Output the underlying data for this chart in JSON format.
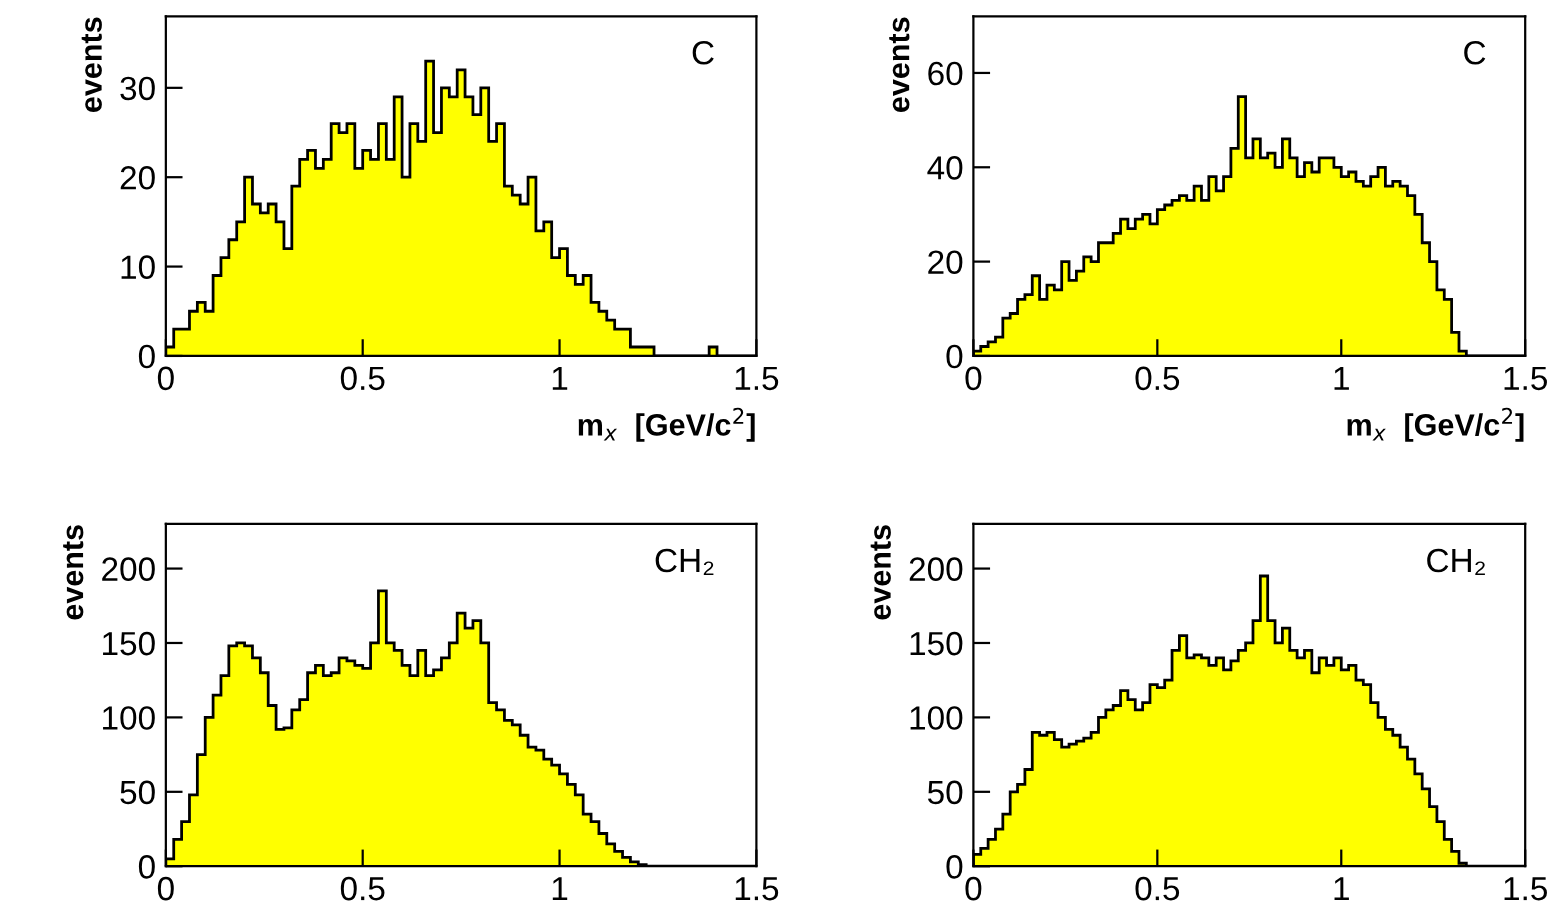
{
  "chart_data": [
    {
      "type": "histogram",
      "ylabel": "events",
      "xlabel": "m$_{x}$  [GeV/c$^{2}$]",
      "annotations": [
        "C"
      ],
      "color": "#ffff00",
      "bins": [
        0,
        0.02,
        0.04,
        0.06,
        0.08,
        0.1,
        0.12,
        0.14,
        0.16,
        0.18,
        0.2,
        0.22,
        0.24,
        0.26,
        0.28,
        0.3,
        0.32,
        0.34,
        0.36,
        0.38,
        0.4,
        0.42,
        0.44,
        0.46,
        0.48,
        0.5,
        0.52,
        0.54,
        0.56,
        0.58,
        0.6,
        0.62,
        0.64,
        0.66,
        0.68,
        0.7,
        0.72,
        0.74,
        0.76,
        0.78,
        0.8,
        0.82,
        0.84,
        0.86,
        0.88,
        0.9,
        0.92,
        0.94,
        0.96,
        0.98,
        1,
        1.02,
        1.04,
        1.06,
        1.08,
        1.1,
        1.12,
        1.14,
        1.16,
        1.18,
        1.2,
        1.22,
        1.24,
        1.26,
        1.28,
        1.3,
        1.32,
        1.34,
        1.36,
        1.38,
        1.4,
        1.42,
        1.44,
        1.46,
        1.48,
        1.5
      ],
      "values": [
        1,
        3,
        3,
        5,
        6,
        5,
        9,
        11,
        13,
        15,
        20,
        17,
        16,
        17,
        15,
        12,
        19,
        22,
        23,
        21,
        22,
        26,
        25,
        26,
        21,
        23,
        22,
        26,
        22,
        29,
        20,
        26,
        24,
        33,
        25,
        30,
        29,
        32,
        29,
        27,
        30,
        24,
        26,
        19,
        18,
        17,
        20,
        14,
        15,
        11,
        12,
        9,
        8,
        9,
        6,
        5,
        4,
        3,
        3,
        1,
        1,
        1,
        0,
        0,
        0,
        0,
        0,
        0,
        0,
        1,
        0,
        0,
        0,
        0,
        0
      ],
      "xlim": [
        0,
        1.5
      ],
      "xticks": [
        0,
        0.5,
        1,
        1.5
      ],
      "ylim": [
        0,
        38
      ],
      "yticks": [
        0,
        10,
        20,
        30
      ]
    },
    {
      "type": "histogram",
      "ylabel": "events",
      "xlabel": "m$_{x}$  [GeV/c$^{2}$]",
      "annotations": [
        "C"
      ],
      "color": "#ffff00",
      "bins": [
        0,
        0.02,
        0.04,
        0.06,
        0.08,
        0.1,
        0.12,
        0.14,
        0.16,
        0.18,
        0.2,
        0.22,
        0.24,
        0.26,
        0.28,
        0.3,
        0.32,
        0.34,
        0.36,
        0.38,
        0.4,
        0.42,
        0.44,
        0.46,
        0.48,
        0.5,
        0.52,
        0.54,
        0.56,
        0.58,
        0.6,
        0.62,
        0.64,
        0.66,
        0.68,
        0.7,
        0.72,
        0.74,
        0.76,
        0.78,
        0.8,
        0.82,
        0.84,
        0.86,
        0.88,
        0.9,
        0.92,
        0.94,
        0.96,
        0.98,
        1,
        1.02,
        1.04,
        1.06,
        1.08,
        1.1,
        1.12,
        1.14,
        1.16,
        1.18,
        1.2,
        1.22,
        1.24,
        1.26,
        1.28,
        1.3,
        1.32,
        1.34,
        1.36,
        1.38,
        1.4,
        1.42,
        1.44,
        1.46,
        1.48,
        1.5
      ],
      "values": [
        1,
        2,
        3,
        4,
        8,
        9,
        12,
        13,
        17,
        12,
        15,
        14,
        20,
        16,
        18,
        21,
        20,
        24,
        24,
        26,
        29,
        27,
        29,
        30,
        28,
        31,
        32,
        33,
        34,
        33,
        36,
        33,
        38,
        35,
        38,
        44,
        55,
        42,
        46,
        42,
        43,
        40,
        46,
        42,
        38,
        41,
        39,
        42,
        42,
        40,
        38,
        39,
        37,
        36,
        38,
        40,
        36,
        37,
        36,
        34,
        30,
        24,
        20,
        14,
        12,
        5,
        1,
        0,
        0,
        0,
        0,
        0,
        0,
        0,
        0
      ],
      "xlim": [
        0,
        1.5
      ],
      "xticks": [
        0,
        0.5,
        1,
        1.5
      ],
      "ylim": [
        0,
        72
      ],
      "yticks": [
        0,
        20,
        40,
        60
      ]
    },
    {
      "type": "histogram",
      "ylabel": "events",
      "annotations": [
        "CH₂"
      ],
      "color": "#ffff00",
      "bins": [
        0,
        0.02,
        0.04,
        0.06,
        0.08,
        0.1,
        0.12,
        0.14,
        0.16,
        0.18,
        0.2,
        0.22,
        0.24,
        0.26,
        0.28,
        0.3,
        0.32,
        0.34,
        0.36,
        0.38,
        0.4,
        0.42,
        0.44,
        0.46,
        0.48,
        0.5,
        0.52,
        0.54,
        0.56,
        0.58,
        0.6,
        0.62,
        0.64,
        0.66,
        0.68,
        0.7,
        0.72,
        0.74,
        0.76,
        0.78,
        0.8,
        0.82,
        0.84,
        0.86,
        0.88,
        0.9,
        0.92,
        0.94,
        0.96,
        0.98,
        1,
        1.02,
        1.04,
        1.06,
        1.08,
        1.1,
        1.12,
        1.14,
        1.16,
        1.18,
        1.2,
        1.22,
        1.24,
        1.26,
        1.28,
        1.3,
        1.32,
        1.34,
        1.36,
        1.38,
        1.4,
        1.42,
        1.44,
        1.46,
        1.48,
        1.5
      ],
      "values": [
        5,
        18,
        30,
        48,
        75,
        100,
        115,
        128,
        148,
        150,
        148,
        140,
        130,
        108,
        92,
        93,
        105,
        112,
        130,
        135,
        128,
        130,
        140,
        138,
        135,
        133,
        150,
        185,
        150,
        145,
        135,
        128,
        145,
        128,
        132,
        140,
        150,
        170,
        160,
        165,
        150,
        110,
        105,
        98,
        95,
        88,
        80,
        78,
        72,
        68,
        62,
        55,
        48,
        35,
        30,
        22,
        15,
        10,
        6,
        3,
        1,
        0,
        0,
        0,
        0,
        0,
        0,
        0,
        0,
        0,
        0,
        0,
        0,
        0,
        0
      ],
      "xlim": [
        0,
        1.5
      ],
      "xticks": [
        0,
        0.5,
        1,
        1.5
      ],
      "ylim": [
        0,
        230
      ],
      "yticks": [
        0,
        50,
        100,
        150,
        200
      ]
    },
    {
      "type": "histogram",
      "ylabel": "events",
      "annotations": [
        "CH₂"
      ],
      "color": "#ffff00",
      "bins": [
        0,
        0.02,
        0.04,
        0.06,
        0.08,
        0.1,
        0.12,
        0.14,
        0.16,
        0.18,
        0.2,
        0.22,
        0.24,
        0.26,
        0.28,
        0.3,
        0.32,
        0.34,
        0.36,
        0.38,
        0.4,
        0.42,
        0.44,
        0.46,
        0.48,
        0.5,
        0.52,
        0.54,
        0.56,
        0.58,
        0.6,
        0.62,
        0.64,
        0.66,
        0.68,
        0.7,
        0.72,
        0.74,
        0.76,
        0.78,
        0.8,
        0.82,
        0.84,
        0.86,
        0.88,
        0.9,
        0.92,
        0.94,
        0.96,
        0.98,
        1,
        1.02,
        1.04,
        1.06,
        1.08,
        1.1,
        1.12,
        1.14,
        1.16,
        1.18,
        1.2,
        1.22,
        1.24,
        1.26,
        1.28,
        1.3,
        1.32,
        1.34,
        1.36,
        1.38,
        1.4,
        1.42,
        1.44,
        1.46,
        1.48,
        1.5
      ],
      "values": [
        8,
        12,
        18,
        25,
        35,
        50,
        55,
        65,
        90,
        88,
        90,
        85,
        80,
        82,
        84,
        86,
        90,
        100,
        105,
        108,
        118,
        112,
        105,
        110,
        122,
        120,
        125,
        145,
        155,
        140,
        142,
        140,
        135,
        140,
        132,
        138,
        145,
        150,
        165,
        195,
        165,
        150,
        160,
        145,
        140,
        145,
        130,
        140,
        135,
        140,
        132,
        135,
        125,
        122,
        110,
        100,
        92,
        88,
        80,
        72,
        62,
        52,
        40,
        30,
        18,
        10,
        2,
        0,
        0,
        0,
        0,
        0,
        0,
        0,
        0
      ],
      "xlim": [
        0,
        1.5
      ],
      "xticks": [
        0,
        0.5,
        1,
        1.5
      ],
      "ylim": [
        0,
        230
      ],
      "yticks": [
        0,
        50,
        100,
        150,
        200
      ]
    }
  ]
}
